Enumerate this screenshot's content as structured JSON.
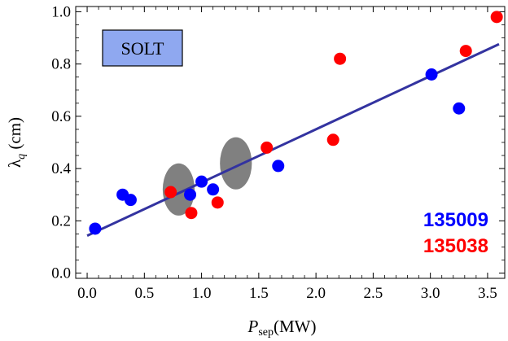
{
  "chart_data": {
    "type": "scatter",
    "xlabel": {
      "main": "P",
      "sub": "sep",
      "unit": "(MW)"
    },
    "ylabel": {
      "main": "λ",
      "sub": "q",
      "unit": " (cm)"
    },
    "xlim": [
      -0.1,
      3.65
    ],
    "ylim": [
      -0.02,
      1.02
    ],
    "xticks": [
      "0.0",
      "0.5",
      "1.0",
      "1.5",
      "2.0",
      "2.5",
      "3.0",
      "3.5"
    ],
    "xtick_values": [
      0,
      0.5,
      1.0,
      1.5,
      2.0,
      2.5,
      3.0,
      3.5
    ],
    "yticks": [
      "0.0",
      "0.2",
      "0.4",
      "0.6",
      "0.8",
      "1.0"
    ],
    "ytick_values": [
      0,
      0.2,
      0.4,
      0.6,
      0.8,
      1.0
    ],
    "annotation_box": "SOLT",
    "series": [
      {
        "name": "135009",
        "color": "#0000ff",
        "points": [
          [
            0.07,
            0.17
          ],
          [
            0.31,
            0.3
          ],
          [
            0.38,
            0.28
          ],
          [
            0.9,
            0.3
          ],
          [
            1.0,
            0.35
          ],
          [
            1.1,
            0.32
          ],
          [
            1.67,
            0.41
          ],
          [
            3.01,
            0.76
          ],
          [
            3.25,
            0.63
          ]
        ]
      },
      {
        "name": "135038",
        "color": "#ff0000",
        "points": [
          [
            0.73,
            0.31
          ],
          [
            0.91,
            0.23
          ],
          [
            1.14,
            0.27
          ],
          [
            1.57,
            0.48
          ],
          [
            2.15,
            0.51
          ],
          [
            2.21,
            0.82
          ],
          [
            3.31,
            0.85
          ],
          [
            3.58,
            0.98
          ]
        ]
      }
    ],
    "fit_line": {
      "color": "#3333a0",
      "x": [
        0.0,
        3.6
      ],
      "y": [
        0.143,
        0.876
      ]
    },
    "ellipses": [
      {
        "cx": 0.8,
        "cy": 0.32,
        "rx": 0.09,
        "ry": 0.1,
        "color": "#808080"
      },
      {
        "cx": 1.3,
        "cy": 0.42,
        "rx": 0.09,
        "ry": 0.1,
        "color": "#808080"
      }
    ]
  }
}
